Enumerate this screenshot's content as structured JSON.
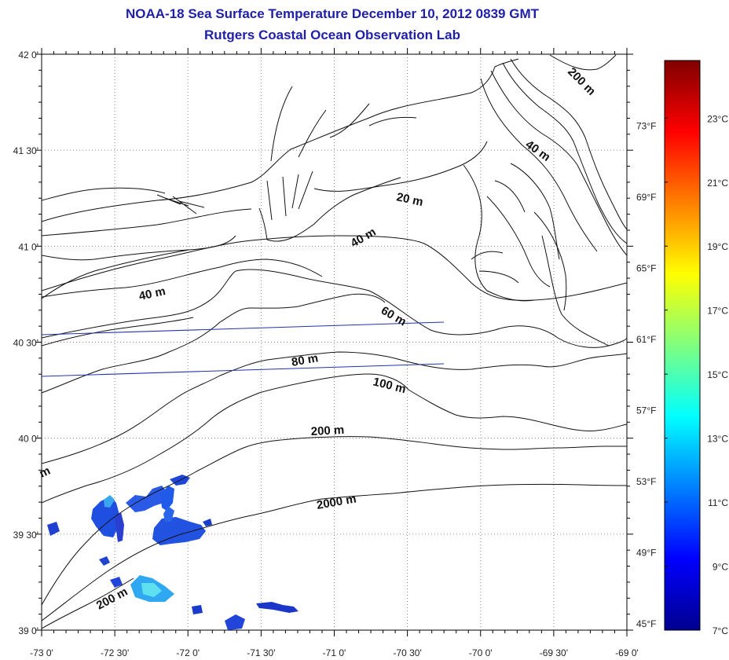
{
  "title_line1": "NOAA-18 Sea Surface Temperature December 10, 2012 0839 GMT",
  "title_line2": "Rutgers Coastal Ocean Observation Lab",
  "axes": {
    "lon_ticks": [
      "-73 0'",
      "-72 30'",
      "-72 0'",
      "-71 30'",
      "-71 0'",
      "-70 30'",
      "-70 0'",
      "-69 30'",
      "-69 0'"
    ],
    "lat_ticks": [
      "42 0'",
      "41 30'",
      "41 0'",
      "40 30'",
      "40 0'",
      "39 30'",
      "39 0'"
    ]
  },
  "colorbar": {
    "celsius_labels": [
      "23°C",
      "21°C",
      "19°C",
      "17°C",
      "15°C",
      "13°C",
      "11°C",
      "9°C",
      "7°C"
    ],
    "fahrenheit_labels": [
      "73°F",
      "69°F",
      "65°F",
      "61°F",
      "57°F",
      "53°F",
      "49°F",
      "45°F"
    ]
  },
  "contour_labels": [
    "200 m",
    "40 m",
    "20 m",
    "40 m",
    "40 m",
    "60 m",
    "80 m",
    "100 m",
    "200 m",
    "2000 m",
    "200 m",
    "m"
  ]
}
